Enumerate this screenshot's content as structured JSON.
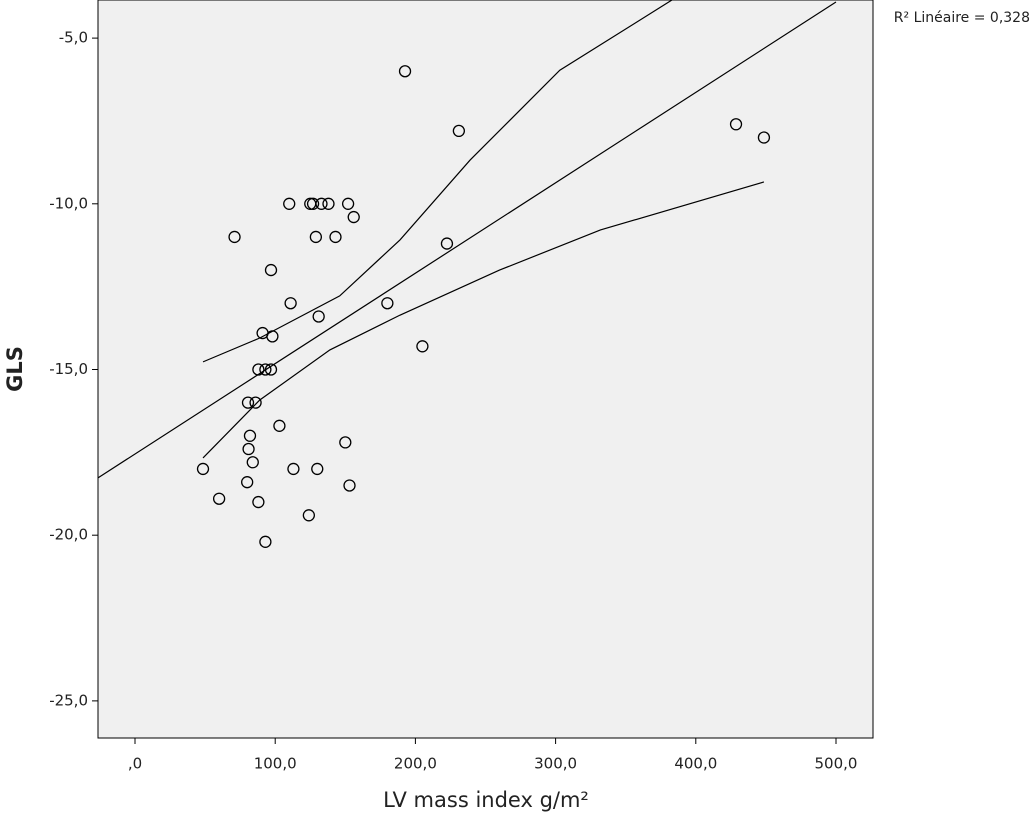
{
  "chart_data": {
    "type": "scatter",
    "x_label": "LV mass index g/m²",
    "y_label": "GLS",
    "annotation": "R² Linéaire = 0,328",
    "xlim": [
      -26.4,
      526.4
    ],
    "ylim": [
      -26.12,
      -3.85
    ],
    "xticks": [
      {
        "value": 0,
        "label": ",0"
      },
      {
        "value": 100,
        "label": "100,0"
      },
      {
        "value": 200,
        "label": "200,0"
      },
      {
        "value": 300,
        "label": "300,0"
      },
      {
        "value": 400,
        "label": "400,0"
      },
      {
        "value": 500,
        "label": "500,0"
      }
    ],
    "yticks": [
      {
        "value": -5,
        "label": "-5,0"
      },
      {
        "value": -10,
        "label": "-10,0"
      },
      {
        "value": -15,
        "label": "-15,0"
      },
      {
        "value": -20,
        "label": "-20,0"
      },
      {
        "value": -25,
        "label": "-25,0"
      }
    ],
    "series": [
      {
        "type": "scatter",
        "color": "#000000",
        "x": [
          192.6,
          231,
          428.7,
          448.6,
          110,
          125,
          127,
          133,
          138,
          152,
          156,
          71,
          129,
          143,
          222.5,
          97,
          111,
          180,
          131,
          91,
          98,
          205,
          88,
          93,
          97,
          80.6,
          86,
          103,
          82,
          150,
          81,
          84,
          48.5,
          113,
          130,
          80,
          153,
          60,
          88,
          124,
          93
        ],
        "values": [
          -6.0,
          -7.8,
          -7.6,
          -8.0,
          -10,
          -10,
          -10,
          -10,
          -10,
          -10,
          -10.4,
          -11,
          -11,
          -11,
          -11.2,
          -12,
          -13,
          -13,
          -13.4,
          -13.9,
          -14,
          -14.3,
          -15,
          -15,
          -15,
          -16,
          -16,
          -16.7,
          -17,
          -17.2,
          -17.4,
          -17.8,
          -18,
          -18,
          -18,
          -18.4,
          -18.5,
          -18.9,
          -19,
          -19.4,
          -20.2
        ]
      },
      {
        "type": "line",
        "color": "#000000",
        "x": [
          -26.4,
          500
        ],
        "values": [
          -18.27,
          -3.91
        ]
      },
      {
        "type": "line",
        "color": "#000000",
        "x": [
          48.5,
          89,
          146,
          189,
          239,
          303,
          383
        ],
        "values": [
          -14.77,
          -14.05,
          -12.78,
          -11.09,
          -8.68,
          -5.97,
          -3.85
        ]
      },
      {
        "type": "line",
        "color": "#000000",
        "x": [
          48.5,
          89,
          139,
          189,
          260,
          332,
          448.6
        ],
        "values": [
          -17.67,
          -15.92,
          -14.41,
          -13.36,
          -12.0,
          -10.79,
          -9.34
        ]
      }
    ]
  }
}
